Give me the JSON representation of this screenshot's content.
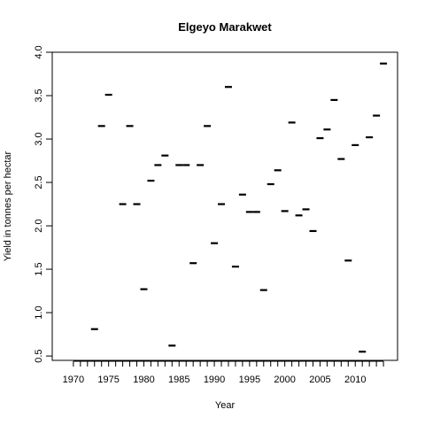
{
  "chart_data": {
    "type": "scatter",
    "title": "Elgeyo Marakwet",
    "xlabel": "Year",
    "ylabel": "Yield in tonnes per hectar",
    "xlim": [
      1967,
      2016
    ],
    "ylim": [
      0.45,
      4.0
    ],
    "x_ticks": [
      1970,
      1975,
      1980,
      1985,
      1990,
      1995,
      2000,
      2005,
      2010
    ],
    "x_minor_ticks": [
      1970,
      1971,
      1972,
      1973,
      1974,
      1975,
      1976,
      1977,
      1978,
      1979,
      1980,
      1981,
      1982,
      1983,
      1984,
      1985,
      1986,
      1987,
      1988,
      1989,
      1990,
      1991,
      1992,
      1993,
      1994,
      1995,
      1996,
      1997,
      1998,
      1999,
      2000,
      2001,
      2002,
      2003,
      2004,
      2005,
      2006,
      2007,
      2008,
      2009,
      2010,
      2011,
      2012,
      2013,
      2014
    ],
    "y_ticks": [
      0.5,
      1.0,
      1.5,
      2.0,
      2.5,
      3.0,
      3.5,
      4.0
    ],
    "y_tick_labels": [
      "0.5",
      "1.0",
      "1.5",
      "2.0",
      "2.5",
      "3.0",
      "3.5",
      "4.0"
    ],
    "marker": "dash",
    "grid": false,
    "legend": "none",
    "series": [
      {
        "x": [
          1973,
          1974,
          1975,
          1977,
          1978,
          1979,
          1980,
          1981,
          1982,
          1983,
          1984,
          1985,
          1986,
          1987,
          1988,
          1989,
          1990,
          1991,
          1992,
          1993,
          1994,
          1995,
          1996,
          1997,
          1998,
          1999,
          2000,
          2001,
          2002,
          2003,
          2004,
          2005,
          2006,
          2007,
          2008,
          2009,
          2010,
          2011,
          2012,
          2013,
          2014
        ],
        "y": [
          0.81,
          3.15,
          3.51,
          2.25,
          3.15,
          2.25,
          1.27,
          2.52,
          2.7,
          2.81,
          0.62,
          2.7,
          2.7,
          1.57,
          2.7,
          3.15,
          1.8,
          2.25,
          3.6,
          1.53,
          2.36,
          2.16,
          2.16,
          1.26,
          2.48,
          2.64,
          2.17,
          3.19,
          2.12,
          2.19,
          1.94,
          3.01,
          3.11,
          3.45,
          2.77,
          1.6,
          2.93,
          0.55,
          3.02,
          3.27,
          3.87
        ]
      }
    ]
  }
}
